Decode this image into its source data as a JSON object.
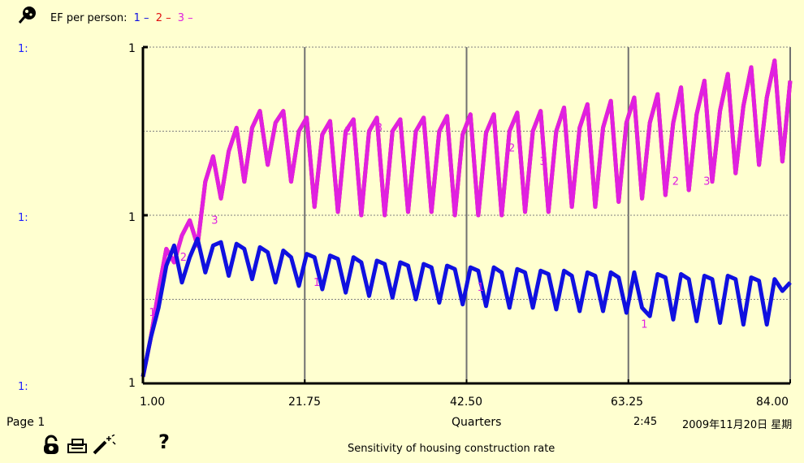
{
  "header": {
    "icon": "graph-pin-icon",
    "title": "EF per person:",
    "series_legend": [
      {
        "label": "1",
        "color": "#1010e0"
      },
      {
        "label": "2",
        "color": "#e01010"
      },
      {
        "label": "3",
        "color": "#e020e0"
      }
    ]
  },
  "axis_scale_labels": [
    "1:",
    "1:",
    "1:"
  ],
  "footer": {
    "page_label": "Page 1",
    "x_axis_title": "Quarters",
    "time": "2:45",
    "date": "2009年11月20日 星期",
    "subtitle": "Sensitivity of housing construction rate",
    "icons": [
      "lock-icon",
      "print-icon",
      "magic-wand-icon",
      "help-icon"
    ],
    "help_glyph": "?"
  },
  "chart_data": {
    "type": "line",
    "title": "EF per person",
    "xlabel": "Quarters",
    "ylabel": "",
    "xlim": [
      1,
      84
    ],
    "ylim": [
      0,
      2
    ],
    "x_tick_labels": [
      "1.00",
      "21.75",
      "42.50",
      "63.25",
      "84.00"
    ],
    "y_tick_labels": [
      "1",
      "1",
      "1"
    ],
    "grid": true,
    "series": [
      {
        "name": "1",
        "color": "#1010e0",
        "x": [
          1,
          2,
          3,
          4,
          5,
          6,
          7,
          8,
          9,
          10,
          11,
          12,
          13,
          14,
          15,
          16,
          17,
          18,
          19,
          20,
          21,
          22,
          23,
          24,
          25,
          26,
          27,
          28,
          29,
          30,
          31,
          32,
          33,
          34,
          35,
          36,
          37,
          38,
          39,
          40,
          41,
          42,
          43,
          44,
          45,
          46,
          47,
          48,
          49,
          50,
          51,
          52,
          53,
          54,
          55,
          56,
          57,
          58,
          59,
          60,
          61,
          62,
          63,
          64,
          65,
          66,
          67,
          68,
          69,
          70,
          71,
          72,
          73,
          74,
          75,
          76,
          77,
          78,
          79,
          80,
          81,
          82,
          83,
          84
        ],
        "y": [
          0.04,
          0.27,
          0.45,
          0.7,
          0.82,
          0.6,
          0.75,
          0.86,
          0.66,
          0.82,
          0.84,
          0.64,
          0.83,
          0.8,
          0.62,
          0.81,
          0.78,
          0.6,
          0.79,
          0.75,
          0.58,
          0.77,
          0.75,
          0.56,
          0.76,
          0.74,
          0.54,
          0.75,
          0.72,
          0.52,
          0.73,
          0.71,
          0.51,
          0.72,
          0.7,
          0.5,
          0.71,
          0.69,
          0.48,
          0.7,
          0.68,
          0.47,
          0.69,
          0.67,
          0.46,
          0.69,
          0.66,
          0.45,
          0.68,
          0.66,
          0.45,
          0.67,
          0.65,
          0.44,
          0.67,
          0.64,
          0.43,
          0.66,
          0.64,
          0.43,
          0.66,
          0.63,
          0.42,
          0.66,
          0.45,
          0.4,
          0.65,
          0.63,
          0.38,
          0.65,
          0.62,
          0.37,
          0.64,
          0.62,
          0.36,
          0.64,
          0.62,
          0.35,
          0.63,
          0.61,
          0.35,
          0.62,
          0.55,
          0.6
        ]
      },
      {
        "name": "2",
        "color": "#e01010",
        "x": [
          1,
          2,
          3,
          4,
          5,
          6,
          7,
          8,
          9,
          10,
          11,
          12,
          13,
          14,
          15,
          16,
          17,
          18,
          19,
          20,
          21,
          22,
          23,
          24,
          25,
          26,
          27,
          28,
          29,
          30,
          31,
          32,
          33,
          34,
          35,
          36,
          37,
          38,
          39,
          40,
          41,
          42,
          43,
          44,
          45,
          46,
          47,
          48,
          49,
          50,
          51,
          52,
          53,
          54,
          55,
          56,
          57,
          58,
          59,
          60,
          61,
          62,
          63,
          64,
          65,
          66,
          67,
          68,
          69,
          70,
          71,
          72,
          73,
          74,
          75,
          76,
          77,
          78,
          79,
          80,
          81,
          82,
          83,
          84
        ],
        "y": [
          0.04,
          0.27,
          0.55,
          0.8,
          0.72,
          0.88,
          0.97,
          0.82,
          1.2,
          1.35,
          1.1,
          1.38,
          1.52,
          1.2,
          1.52,
          1.62,
          1.3,
          1.55,
          1.62,
          1.2,
          1.5,
          1.58,
          1.05,
          1.48,
          1.56,
          1.02,
          1.5,
          1.57,
          1.0,
          1.5,
          1.58,
          1.0,
          1.5,
          1.57,
          1.02,
          1.5,
          1.58,
          1.02,
          1.5,
          1.59,
          1.0,
          1.48,
          1.6,
          1.0,
          1.49,
          1.6,
          1.0,
          1.5,
          1.61,
          1.02,
          1.5,
          1.62,
          1.02,
          1.5,
          1.64,
          1.05,
          1.52,
          1.66,
          1.05,
          1.52,
          1.68,
          1.08,
          1.55,
          1.7,
          1.1,
          1.55,
          1.72,
          1.12,
          1.55,
          1.76,
          1.15,
          1.6,
          1.8,
          1.2,
          1.62,
          1.84,
          1.25,
          1.65,
          1.88,
          1.3,
          1.7,
          1.92,
          1.32,
          1.8
        ]
      },
      {
        "name": "3",
        "color": "#e020e0",
        "x": [
          1,
          2,
          3,
          4,
          5,
          6,
          7,
          8,
          9,
          10,
          11,
          12,
          13,
          14,
          15,
          16,
          17,
          18,
          19,
          20,
          21,
          22,
          23,
          24,
          25,
          26,
          27,
          28,
          29,
          30,
          31,
          32,
          33,
          34,
          35,
          36,
          37,
          38,
          39,
          40,
          41,
          42,
          43,
          44,
          45,
          46,
          47,
          48,
          49,
          50,
          51,
          52,
          53,
          54,
          55,
          56,
          57,
          58,
          59,
          60,
          61,
          62,
          63,
          64,
          65,
          66,
          67,
          68,
          69,
          70,
          71,
          72,
          73,
          74,
          75,
          76,
          77,
          78,
          79,
          80,
          81,
          82,
          83,
          84
        ],
        "y": [
          0.04,
          0.27,
          0.55,
          0.8,
          0.72,
          0.88,
          0.97,
          0.82,
          1.2,
          1.35,
          1.1,
          1.38,
          1.52,
          1.2,
          1.52,
          1.62,
          1.3,
          1.55,
          1.62,
          1.2,
          1.5,
          1.58,
          1.05,
          1.48,
          1.56,
          1.02,
          1.5,
          1.57,
          1.0,
          1.5,
          1.58,
          1.0,
          1.5,
          1.57,
          1.02,
          1.5,
          1.58,
          1.02,
          1.5,
          1.59,
          1.0,
          1.48,
          1.6,
          1.0,
          1.49,
          1.6,
          1.0,
          1.5,
          1.61,
          1.02,
          1.5,
          1.62,
          1.02,
          1.5,
          1.64,
          1.05,
          1.52,
          1.66,
          1.05,
          1.52,
          1.68,
          1.08,
          1.55,
          1.7,
          1.1,
          1.55,
          1.72,
          1.12,
          1.55,
          1.76,
          1.15,
          1.6,
          1.8,
          1.2,
          1.62,
          1.84,
          1.25,
          1.65,
          1.88,
          1.3,
          1.7,
          1.92,
          1.32,
          1.8
        ]
      }
    ],
    "point_markers": [
      {
        "label": "1",
        "color": "#e020e0",
        "x": 2.2,
        "y": 0.4
      },
      {
        "label": "1",
        "color": "#e020e0",
        "x": 23.3,
        "y": 0.58
      },
      {
        "label": "1",
        "color": "#e020e0",
        "x": 44.3,
        "y": 0.55
      },
      {
        "label": "1",
        "color": "#e020e0",
        "x": 65.3,
        "y": 0.33
      },
      {
        "label": "2",
        "color": "#e020e0",
        "x": 6.2,
        "y": 0.73
      },
      {
        "label": "2",
        "color": "#e020e0",
        "x": 27.3,
        "y": 1.48
      },
      {
        "label": "2",
        "color": "#e020e0",
        "x": 48.3,
        "y": 1.38
      },
      {
        "label": "2",
        "color": "#e020e0",
        "x": 69.3,
        "y": 1.18
      },
      {
        "label": "3",
        "color": "#e020e0",
        "x": 10.2,
        "y": 0.95
      },
      {
        "label": "3",
        "color": "#e020e0",
        "x": 31.3,
        "y": 1.5
      },
      {
        "label": "3",
        "color": "#e020e0",
        "x": 52.3,
        "y": 1.3
      },
      {
        "label": "3",
        "color": "#e020e0",
        "x": 73.3,
        "y": 1.18
      }
    ]
  }
}
